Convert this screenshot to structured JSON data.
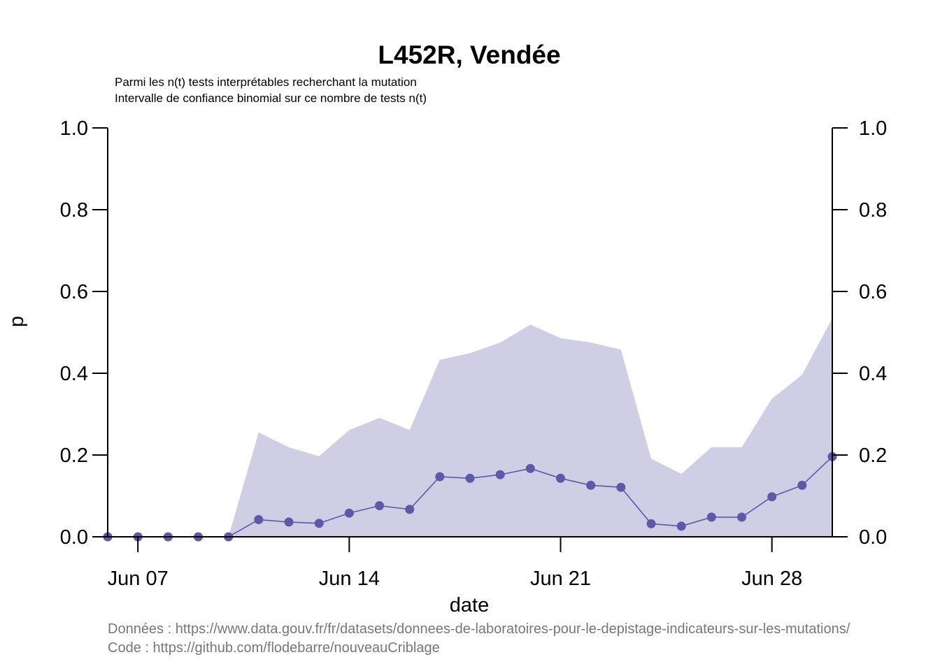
{
  "chart_data": {
    "type": "line",
    "title": "L452R, Vendée",
    "subtitle_lines": [
      "Parmi les n(t) tests interprétables recherchant la mutation",
      "Intervalle de confiance binomial sur ce nombre de tests n(t)"
    ],
    "xlabel": "date",
    "ylabel": "p",
    "x": [
      "2021-06-06",
      "2021-06-07",
      "2021-06-08",
      "2021-06-09",
      "2021-06-10",
      "2021-06-11",
      "2021-06-12",
      "2021-06-13",
      "2021-06-14",
      "2021-06-15",
      "2021-06-16",
      "2021-06-17",
      "2021-06-18",
      "2021-06-19",
      "2021-06-20",
      "2021-06-21",
      "2021-06-22",
      "2021-06-23",
      "2021-06-24",
      "2021-06-25",
      "2021-06-26",
      "2021-06-27",
      "2021-06-28",
      "2021-06-29",
      "2021-06-30"
    ],
    "xlim": [
      "2021-06-06",
      "2021-06-30"
    ],
    "ylim": [
      0,
      1
    ],
    "x_ticks": [
      {
        "date": "2021-06-07",
        "label": "Jun 07"
      },
      {
        "date": "2021-06-14",
        "label": "Jun 14"
      },
      {
        "date": "2021-06-21",
        "label": "Jun 21"
      },
      {
        "date": "2021-06-28",
        "label": "Jun 28"
      }
    ],
    "y_ticks": [
      "0.0",
      "0.2",
      "0.4",
      "0.6",
      "0.8",
      "1.0"
    ],
    "series": [
      {
        "values": [
          0,
          0,
          0,
          0,
          0,
          0.042,
          0.036,
          0.033,
          0.058,
          0.076,
          0.067,
          0.147,
          0.143,
          0.152,
          0.167,
          0.143,
          0.126,
          0.121,
          0.032,
          0.026,
          0.048,
          0.048,
          0.098,
          0.126,
          0.196
        ],
        "ci_lower": [
          0,
          0,
          0,
          0,
          0,
          0,
          0,
          0,
          0,
          0,
          0,
          0,
          0,
          0,
          0,
          0,
          0,
          0,
          0,
          0,
          0,
          0,
          0,
          0,
          0
        ],
        "ci_upper": [
          0,
          0,
          0,
          0,
          0,
          0.255,
          0.219,
          0.197,
          0.261,
          0.291,
          0.261,
          0.433,
          0.449,
          0.475,
          0.519,
          0.486,
          0.475,
          0.458,
          0.191,
          0.154,
          0.219,
          0.219,
          0.338,
          0.396,
          0.535
        ],
        "color": "#5e58a8",
        "ci_color": "#d0cee5"
      }
    ],
    "source_lines": [
      "Données : https://www.data.gouv.fr/fr/datasets/donnees-de-laboratoires-pour-le-depistage-indicateurs-sur-les-mutations/",
      "Code : https://github.com/flodebarre/nouveauCriblage"
    ]
  }
}
